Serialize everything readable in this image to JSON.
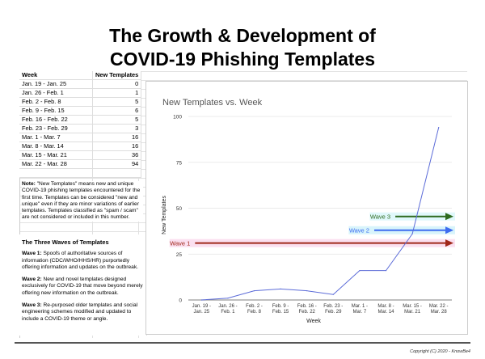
{
  "title": {
    "line1": "The Growth & Development of",
    "line2": "COVID-19 Phishing Templates"
  },
  "table": {
    "headers": [
      "Week",
      "New Templates"
    ],
    "rows": [
      {
        "week": "Jan. 19 - Jan. 25",
        "value": "0"
      },
      {
        "week": "Jan. 26 - Feb. 1",
        "value": "1"
      },
      {
        "week": "Feb. 2 - Feb. 8",
        "value": "5"
      },
      {
        "week": "Feb. 9 - Feb. 15",
        "value": "6"
      },
      {
        "week": "Feb. 16 - Feb. 22",
        "value": "5"
      },
      {
        "week": "Feb. 23 - Feb. 29",
        "value": "3"
      },
      {
        "week": "Mar. 1 - Mar. 7",
        "value": "16"
      },
      {
        "week": "Mar. 8 - Mar. 14",
        "value": "16"
      },
      {
        "week": "Mar. 15 - Mar. 21",
        "value": "36"
      },
      {
        "week": "Mar. 22 - Mar. 28",
        "value": "94"
      }
    ]
  },
  "note": {
    "label": "Note:",
    "text": " \"New Templates\" means new and unique COVID-19 phishing templates encountered for the first time. Templates can be considered \"new and unique\" even if they are minor variations of earlier templates. Templates classified as \"spam / scam\" are not considered or included in this number."
  },
  "waves": {
    "heading": "The Three Waves of Templates",
    "items": [
      {
        "label": "Wave 1:",
        "text": " Spoofs of authoritative sources of information (CDC/WHO/HHS/HR) purportedly offering information and updates on the outbreak."
      },
      {
        "label": "Wave 2:",
        "text": " New and novel templates designed exclusively for COVID-19 that move beyond merely offering new information on the outbreak."
      },
      {
        "label": "Wave 3:",
        "text": " Re-purposed older templates and social engineering schemes modified and updated to include a COVID-19 theme or angle."
      }
    ]
  },
  "chart_data": {
    "type": "line",
    "title": "New Templates vs. Week",
    "xlabel": "Week",
    "ylabel": "New Templates",
    "categories": [
      [
        "Jan. 19 -",
        "Jan. 25"
      ],
      [
        "Jan. 26 -",
        "Feb. 1"
      ],
      [
        "Feb. 2 -",
        "Feb. 8"
      ],
      [
        "Feb. 9 -",
        "Feb. 15"
      ],
      [
        "Feb. 16 -",
        "Feb. 22"
      ],
      [
        "Feb. 23 -",
        "Feb. 29"
      ],
      [
        "Mar. 1 -",
        "Mar. 7"
      ],
      [
        "Mar. 8 -",
        "Mar. 14"
      ],
      [
        "Mar. 15 -",
        "Mar. 21"
      ],
      [
        "Mar. 22 -",
        "Mar. 28"
      ]
    ],
    "values": [
      0,
      1,
      5,
      6,
      5,
      3,
      16,
      16,
      36,
      94
    ],
    "ylim": [
      0,
      100
    ],
    "yticks": [
      "0",
      "25",
      "50",
      "75",
      "100"
    ],
    "grid": true,
    "line_color": "#5b6bd8",
    "annotations": [
      {
        "label": "Wave 1",
        "y": 31,
        "start_index": 0,
        "color": "#a0281a",
        "band": "#fbe0f0"
      },
      {
        "label": "Wave 2",
        "y": 38,
        "start_index": 6.8,
        "color": "#3d6cf0",
        "band": "#d8f4fb"
      },
      {
        "label": "Wave 3",
        "y": 45.5,
        "start_index": 7.6,
        "color": "#2e6a1e",
        "band": "#e0f8fb"
      }
    ]
  },
  "copyright": "Copyright (C) 2020 - KnowBe4"
}
